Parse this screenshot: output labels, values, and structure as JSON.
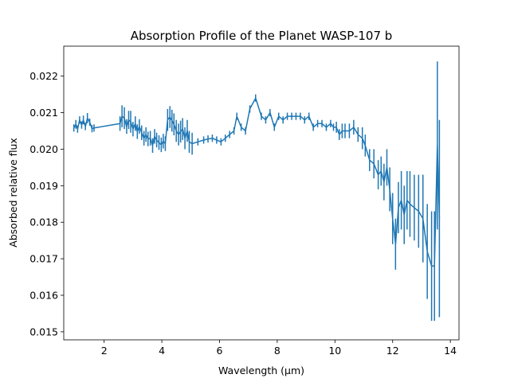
{
  "chart_data": {
    "type": "line",
    "title": "Absorption Profile of the Planet WASP-107 b",
    "xlabel": "Wavelength (μm)",
    "ylabel": "Absorbed relative flux",
    "xlim": [
      0.6,
      14.3
    ],
    "ylim": [
      0.01478,
      0.02282
    ],
    "xticks": [
      2,
      4,
      6,
      8,
      10,
      12,
      14
    ],
    "xtick_labels": [
      "2",
      "4",
      "6",
      "8",
      "10",
      "12",
      "14"
    ],
    "yticks": [
      0.015,
      0.016,
      0.017,
      0.018,
      0.019,
      0.02,
      0.021,
      0.022
    ],
    "ytick_labels": [
      "0.015",
      "0.016",
      "0.017",
      "0.018",
      "0.019",
      "0.020",
      "0.021",
      "0.022"
    ],
    "grid": false,
    "color": "#1f77b4",
    "series": [
      {
        "x": [
          0.95,
          1.02,
          1.08,
          1.15,
          1.22,
          1.28,
          1.35,
          1.42,
          1.5,
          1.58,
          1.65,
          2.55,
          2.62,
          2.7,
          2.78,
          2.85,
          2.92,
          3.0,
          3.08,
          3.15,
          3.22,
          3.3,
          3.38,
          3.45,
          3.52,
          3.6,
          3.68,
          3.75,
          3.82,
          3.9,
          3.98,
          4.05,
          4.12,
          4.2,
          4.28,
          4.35,
          4.42,
          4.5,
          4.58,
          4.65,
          4.72,
          4.8,
          4.88,
          4.95,
          5.05,
          5.25,
          5.45,
          5.6,
          5.75,
          5.9,
          6.05,
          6.2,
          6.35,
          6.5,
          6.6,
          6.75,
          6.9,
          7.05,
          7.25,
          7.45,
          7.6,
          7.75,
          7.9,
          8.05,
          8.2,
          8.35,
          8.5,
          8.65,
          8.8,
          8.95,
          9.1,
          9.25,
          9.4,
          9.55,
          9.7,
          9.85,
          9.95,
          10.05,
          10.15,
          10.25,
          10.35,
          10.5,
          10.65,
          10.8,
          10.95,
          11.05,
          11.2,
          11.35,
          11.5,
          11.6,
          11.7,
          11.8,
          11.9,
          12.0,
          12.1,
          12.2,
          12.3,
          12.4,
          12.5,
          12.6,
          12.75,
          12.9,
          13.05,
          13.2,
          13.35,
          13.45,
          13.55,
          13.62
        ],
        "y": [
          0.02058,
          0.02068,
          0.02055,
          0.0208,
          0.02066,
          0.0208,
          0.02062,
          0.02085,
          0.02074,
          0.02056,
          0.02058,
          0.0207,
          0.0209,
          0.02085,
          0.02062,
          0.0208,
          0.02075,
          0.02055,
          0.0207,
          0.02048,
          0.02062,
          0.02045,
          0.0203,
          0.0204,
          0.02028,
          0.0203,
          0.0201,
          0.02035,
          0.02025,
          0.02018,
          0.02012,
          0.02022,
          0.02015,
          0.0208,
          0.02088,
          0.02078,
          0.02068,
          0.0205,
          0.0204,
          0.02048,
          0.02055,
          0.0203,
          0.0205,
          0.0202,
          0.02015,
          0.0202,
          0.02025,
          0.02028,
          0.0203,
          0.02025,
          0.0202,
          0.0203,
          0.0204,
          0.0205,
          0.0209,
          0.0206,
          0.0205,
          0.0211,
          0.0214,
          0.0209,
          0.0208,
          0.021,
          0.0206,
          0.0209,
          0.0208,
          0.0209,
          0.0209,
          0.0209,
          0.0209,
          0.0208,
          0.0209,
          0.0206,
          0.0207,
          0.0207,
          0.0206,
          0.0207,
          0.0206,
          0.0206,
          0.0204,
          0.0205,
          0.0205,
          0.0205,
          0.0206,
          0.0204,
          0.0203,
          0.0201,
          0.0197,
          0.0196,
          0.0193,
          0.0194,
          0.0191,
          0.0195,
          0.0189,
          0.0181,
          0.0174,
          0.0184,
          0.0186,
          0.0182,
          0.0186,
          0.0185,
          0.0184,
          0.0183,
          0.0181,
          0.0172,
          0.0168,
          0.0168,
          0.0201,
          0.0181
        ],
        "err": [
          0.0001,
          0.00012,
          0.0001,
          0.0001,
          0.0001,
          0.00012,
          0.0001,
          0.00014,
          0.0001,
          0.0001,
          0.0001,
          0.0002,
          0.0003,
          0.0003,
          0.0002,
          0.00025,
          0.0003,
          0.0002,
          0.0002,
          0.0002,
          0.0002,
          0.0002,
          0.0002,
          0.0002,
          0.0002,
          0.0002,
          0.0002,
          0.0002,
          0.0002,
          0.0002,
          0.0002,
          0.0002,
          0.0002,
          0.0003,
          0.0003,
          0.0003,
          0.0003,
          0.0003,
          0.0003,
          0.0003,
          0.0003,
          0.0003,
          0.0003,
          0.0003,
          0.0003,
          0.0001,
          0.0001,
          0.0001,
          0.0001,
          0.0001,
          0.0001,
          0.0001,
          0.0001,
          0.0001,
          0.0001,
          0.0001,
          0.0001,
          0.0001,
          0.0001,
          0.0001,
          0.0001,
          0.0001,
          0.0001,
          0.0001,
          0.0001,
          0.0001,
          0.0001,
          0.0001,
          0.0001,
          0.0001,
          0.0001,
          0.0001,
          0.0001,
          0.0001,
          0.0001,
          0.0001,
          0.0001,
          0.00015,
          0.00015,
          0.0002,
          0.0002,
          0.0002,
          0.0002,
          0.0002,
          0.0003,
          0.0003,
          0.0003,
          0.0004,
          0.0004,
          0.0004,
          0.0005,
          0.0005,
          0.0006,
          0.0007,
          0.0007,
          0.0007,
          0.0008,
          0.0008,
          0.0008,
          0.0009,
          0.0009,
          0.001,
          0.0012,
          0.0013,
          0.0015,
          0.0015,
          0.0023,
          0.0027
        ]
      }
    ]
  }
}
